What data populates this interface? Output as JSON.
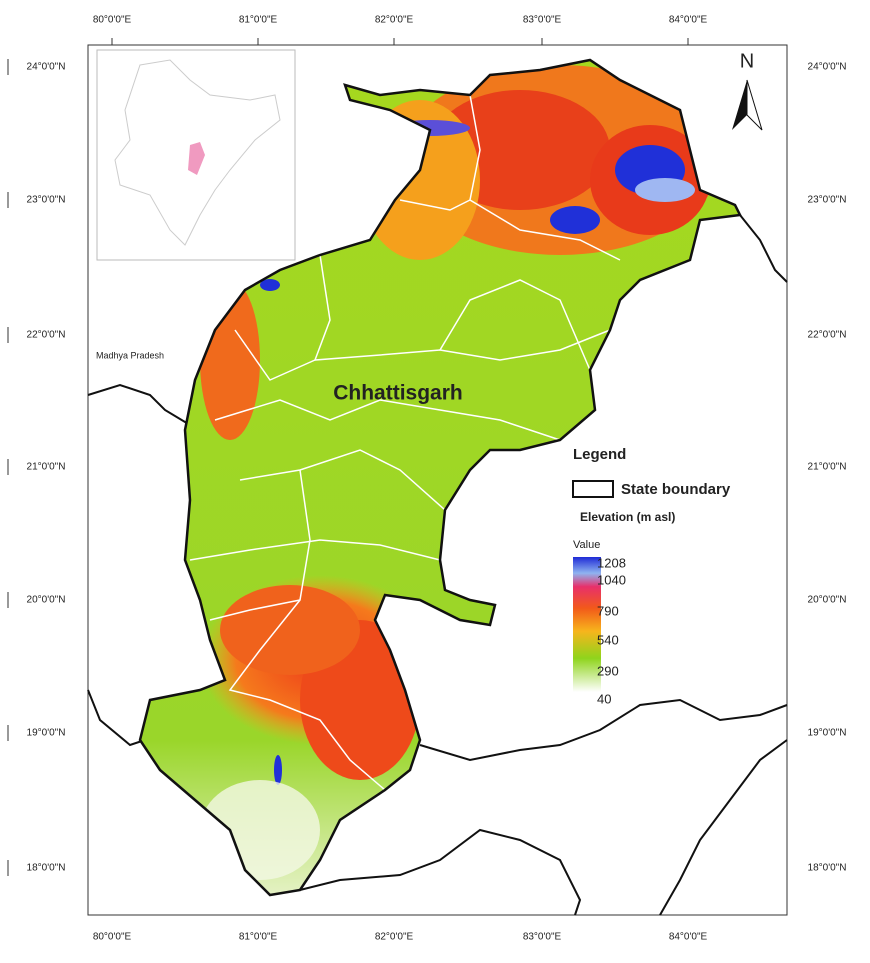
{
  "map": {
    "title": "Chhattisgarh",
    "neighbor_label": "Madhya Pradesh",
    "north_label": "N",
    "longitude_labels": [
      "80°0'0\"E",
      "81°0'0\"E",
      "82°0'0\"E",
      "83°0'0\"E",
      "84°0'0\"E"
    ],
    "latitude_labels": [
      "24°0'0\"N",
      "23°0'0\"N",
      "22°0'0\"N",
      "21°0'0\"N",
      "20°0'0\"N",
      "19°0'0\"N",
      "18°0'0\"N"
    ],
    "legend": {
      "title": "Legend",
      "boundary_label": "State boundary",
      "elevation_title": "Elevation (m asl)",
      "value_title": "Value",
      "values": [
        1208,
        1040,
        790,
        540,
        290,
        40
      ]
    }
  }
}
